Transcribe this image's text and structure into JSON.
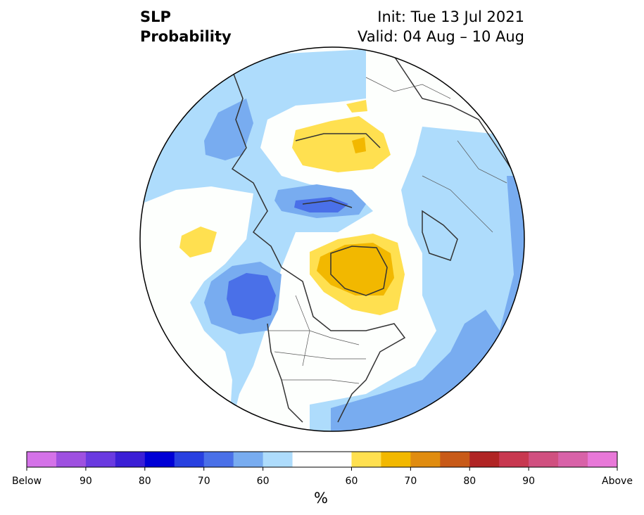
{
  "title": {
    "left_line1": "SLP",
    "left_line2": "Probability",
    "right_line1": "Init: Tue 13 Jul 2021",
    "right_line2": "Valid: 04 Aug – 10 Aug"
  },
  "colorbar": {
    "unit": "%",
    "colors": [
      "#d472e8",
      "#9e50e0",
      "#6a3ae0",
      "#3b1fd6",
      "#0000d6",
      "#2840e0",
      "#4a70e8",
      "#78acf0",
      "#aedcfc",
      "#ffffff",
      "#ffffff",
      "#ffe050",
      "#f2b800",
      "#e08c10",
      "#c85a18",
      "#b02424",
      "#c83850",
      "#d05080",
      "#d862a8",
      "#e878d8"
    ],
    "tick_labels": [
      "Below",
      "90",
      "80",
      "70",
      "60",
      "60",
      "70",
      "80",
      "90",
      "Above"
    ]
  },
  "map": {
    "projection": "north-polar-stereographic",
    "colors": {
      "above_55": "#ffe050",
      "above_60": "#f2b800",
      "below_55": "#aedcfc",
      "below_60": "#78acf0",
      "below_65": "#4a70e8",
      "neutral": "#fdfffd",
      "coastline": "#333333",
      "border": "#555555"
    }
  }
}
